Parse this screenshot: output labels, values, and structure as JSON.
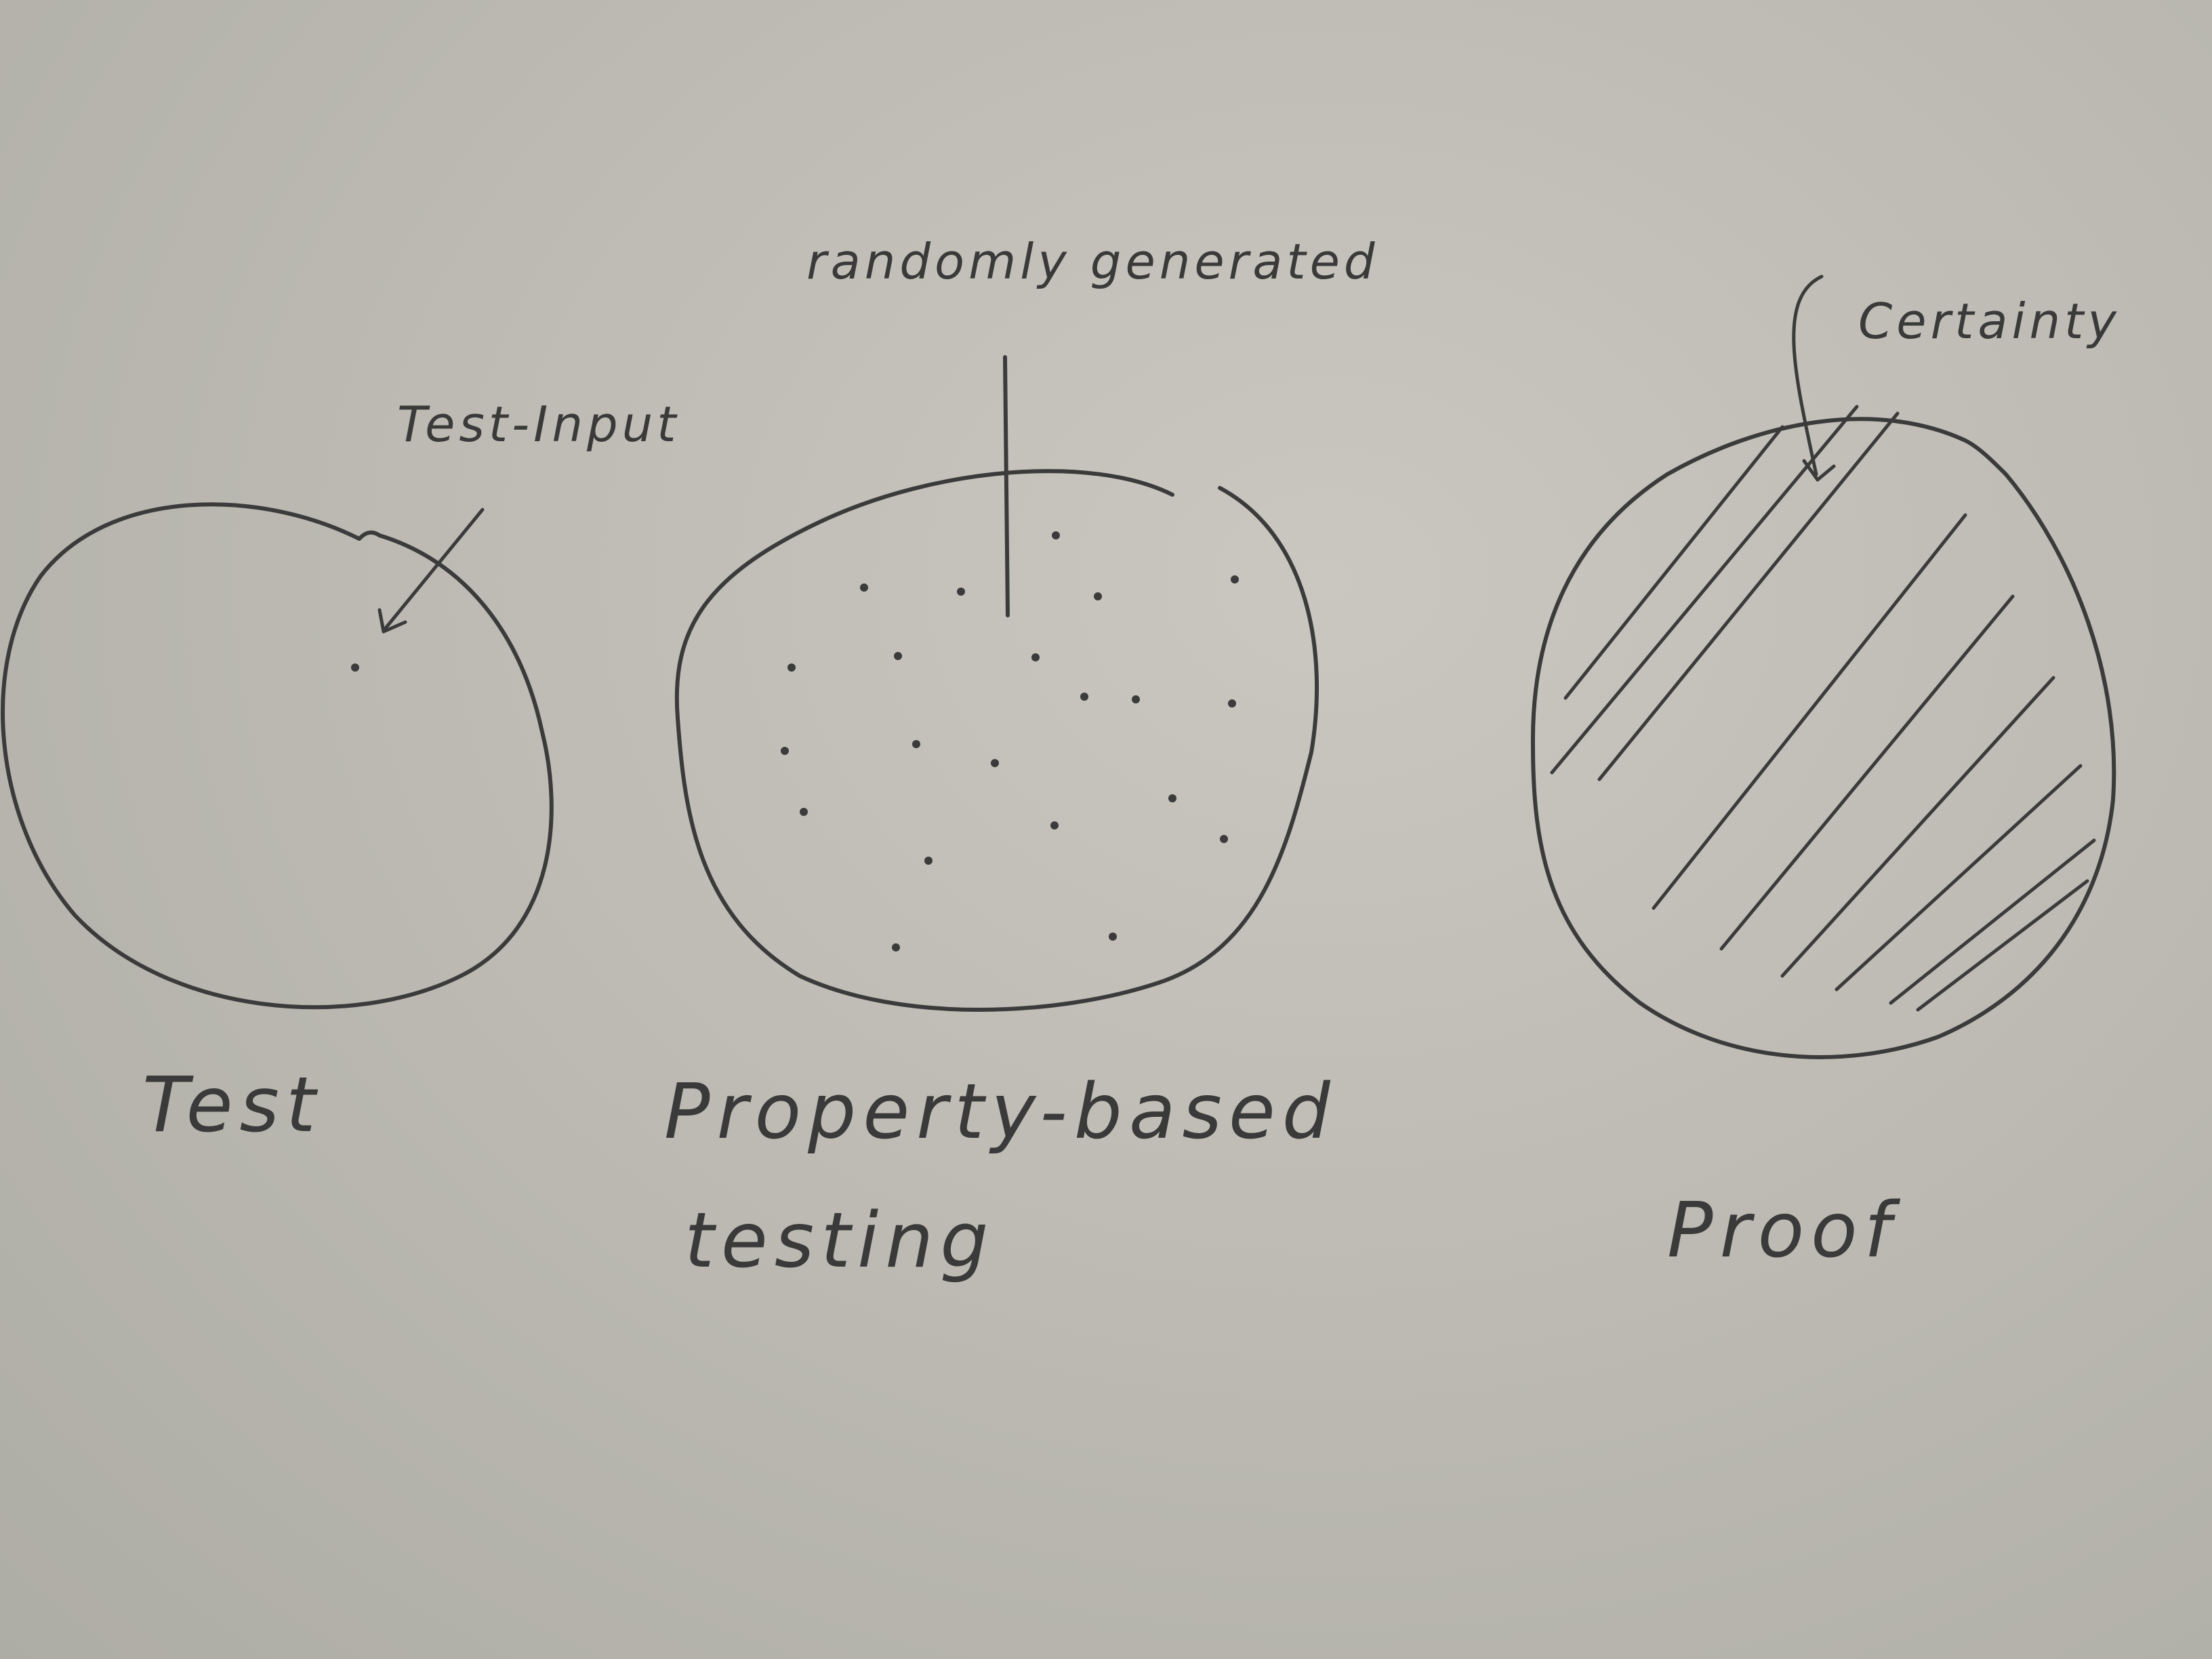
{
  "sketch": {
    "test": {
      "label": "Test",
      "annotation": "Test-Input"
    },
    "property_based": {
      "label_line1": "Property-based",
      "label_line2": "testing",
      "annotation": "randomly generated"
    },
    "proof": {
      "label": "Proof",
      "annotation": "Certainty"
    }
  },
  "colors": {
    "paper": "#bdbbb3",
    "ink": "#3b3b3b"
  }
}
